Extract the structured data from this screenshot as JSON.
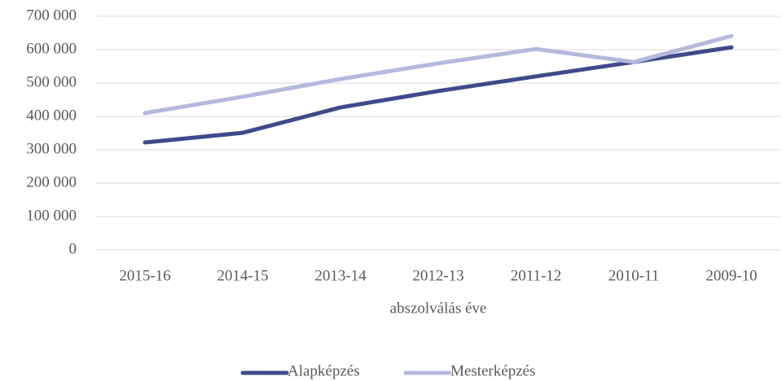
{
  "chart_data": {
    "type": "line",
    "x_label": "abszolválás éve",
    "categories": [
      "2015-16",
      "2014-15",
      "2013-14",
      "2012-13",
      "2011-12",
      "2010-11",
      "2009-10"
    ],
    "series": [
      {
        "name": "Alapképzés",
        "color": "#3f4a8a",
        "values": [
          322000,
          351000,
          427000,
          476000,
          520000,
          563000,
          607000
        ]
      },
      {
        "name": "Mesterképzés",
        "color": "#b4b9dc",
        "values": [
          410000,
          459000,
          512000,
          559000,
          602000,
          563000,
          641000
        ]
      }
    ],
    "ylim": [
      0,
      700000
    ],
    "yticks": [
      0,
      {
        "value": 100000,
        "label": "100 000"
      },
      {
        "value": 200000,
        "label": "200 000"
      },
      {
        "value": 300000,
        "label": "300 000"
      },
      {
        "value": 400000,
        "label": "400 000"
      },
      {
        "value": 500000,
        "label": "500 000"
      },
      {
        "value": 600000,
        "label": "600 000"
      },
      {
        "value": 700000,
        "label": "700 000"
      }
    ],
    "grid": true,
    "legend": "bottom"
  }
}
